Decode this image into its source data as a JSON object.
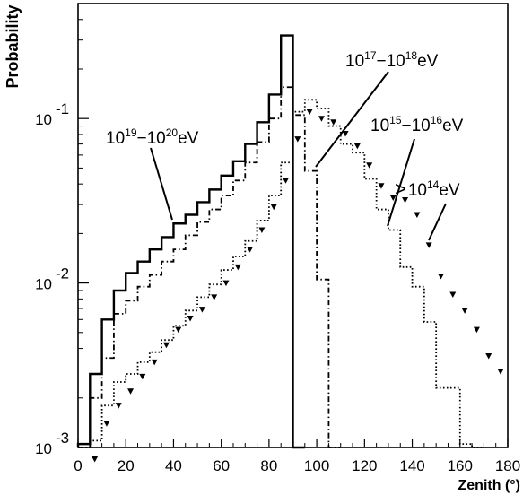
{
  "chart_data": {
    "type": "line",
    "title": "",
    "xlabel": "Zenith (°)",
    "ylabel": "Probability",
    "xlim": [
      0,
      180
    ],
    "ylim": [
      0.001,
      0.5
    ],
    "log_y": true,
    "x_ticks": [
      {
        "v": 0,
        "t": "0"
      },
      {
        "v": 20,
        "t": "20"
      },
      {
        "v": 40,
        "t": "40"
      },
      {
        "v": 60,
        "t": "60"
      },
      {
        "v": 80,
        "t": "80"
      },
      {
        "v": 100,
        "t": "100"
      },
      {
        "v": 120,
        "t": "120"
      },
      {
        "v": 140,
        "t": "140"
      },
      {
        "v": 160,
        "t": "160"
      },
      {
        "v": 180,
        "t": "180"
      }
    ],
    "y_ticks": [
      {
        "v": 0.001,
        "base": "10",
        "exp": "-3"
      },
      {
        "v": 0.01,
        "base": "10",
        "exp": "-2"
      },
      {
        "v": 0.1,
        "base": "10",
        "exp": "-1"
      }
    ],
    "bin_edges": [
      0,
      5,
      10,
      15,
      20,
      25,
      30,
      35,
      40,
      45,
      50,
      55,
      60,
      65,
      70,
      75,
      80,
      85,
      90,
      95,
      100,
      105,
      110,
      115,
      120,
      125,
      130,
      135,
      140,
      145,
      150,
      155,
      160,
      165,
      170,
      175,
      180
    ],
    "series": [
      {
        "name": "10^19 - 10^20 eV",
        "style": "solid",
        "values": [
          0.00105,
          0.0028,
          0.006,
          0.009,
          0.0115,
          0.0135,
          0.016,
          0.019,
          0.023,
          0.026,
          0.031,
          0.037,
          0.045,
          0.055,
          0.07,
          0.095,
          0.14,
          0.32,
          0.001
        ]
      },
      {
        "name": "10^17 - 10^18 eV",
        "style": "dashdot",
        "values": [
          0.001,
          0.002,
          0.0035,
          0.0065,
          0.0078,
          0.0095,
          0.0112,
          0.0135,
          0.016,
          0.0195,
          0.0235,
          0.028,
          0.034,
          0.042,
          0.054,
          0.072,
          0.1,
          0.155,
          0.105,
          0.048,
          0.0105,
          0.001
        ]
      },
      {
        "name": "10^15 - 10^16 eV",
        "style": "dotted",
        "values": [
          0.001,
          0.0011,
          0.0018,
          0.0025,
          0.0028,
          0.0033,
          0.0038,
          0.0045,
          0.0055,
          0.0068,
          0.0082,
          0.0098,
          0.012,
          0.0145,
          0.018,
          0.024,
          0.034,
          0.054,
          0.11,
          0.13,
          0.115,
          0.09,
          0.07,
          0.062,
          0.043,
          0.028,
          0.021,
          0.0125,
          0.0095,
          0.0058,
          0.0023,
          0.0023,
          0.00105,
          0.001
        ]
      },
      {
        "name": "> 10^14 eV",
        "style": "triangle-markers",
        "points": [
          [
            7,
            0.00085
          ],
          [
            12,
            0.0014
          ],
          [
            17,
            0.0018
          ],
          [
            22,
            0.0022
          ],
          [
            27,
            0.0027
          ],
          [
            32,
            0.0033
          ],
          [
            37,
            0.0042
          ],
          [
            42,
            0.0052
          ],
          [
            47,
            0.0061
          ],
          [
            52,
            0.0069
          ],
          [
            57,
            0.0082
          ],
          [
            62,
            0.01
          ],
          [
            67,
            0.0125
          ],
          [
            72,
            0.016
          ],
          [
            77,
            0.021
          ],
          [
            82,
            0.029
          ],
          [
            87,
            0.042
          ],
          [
            92,
            0.075
          ],
          [
            97,
            0.11
          ],
          [
            102,
            0.1
          ],
          [
            107,
            0.095
          ],
          [
            112,
            0.081
          ],
          [
            117,
            0.068
          ],
          [
            122,
            0.052
          ],
          [
            127,
            0.039
          ],
          [
            132,
            0.033
          ],
          [
            137,
            0.032
          ],
          [
            142,
            0.026
          ],
          [
            147,
            0.017
          ],
          [
            152,
            0.011
          ],
          [
            157,
            0.0085
          ],
          [
            162,
            0.0068
          ],
          [
            167,
            0.0052
          ],
          [
            172,
            0.0036
          ],
          [
            177,
            0.0029
          ]
        ]
      }
    ],
    "annotations": [
      {
        "base1": "10",
        "exp1": "19",
        "base2": "10",
        "exp2": "20",
        "unit": "eV",
        "prefix": ""
      },
      {
        "base1": "10",
        "exp1": "17",
        "base2": "10",
        "exp2": "18",
        "unit": "eV",
        "prefix": ""
      },
      {
        "base1": "10",
        "exp1": "15",
        "base2": "10",
        "exp2": "16",
        "unit": "eV",
        "prefix": ""
      },
      {
        "base1": "",
        "exp1": "",
        "base2": "10",
        "exp2": "14",
        "unit": "eV",
        "prefix": ">"
      }
    ],
    "grid": false,
    "legend": "none"
  }
}
